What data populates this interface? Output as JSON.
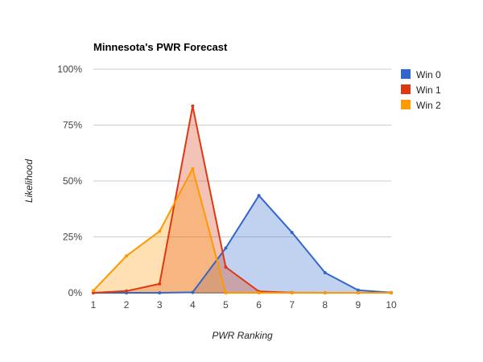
{
  "chart_data": {
    "type": "area",
    "title": "Minnesota's PWR Forecast",
    "xlabel": "PWR Ranking",
    "ylabel": "Likelihood",
    "x": [
      1,
      2,
      3,
      4,
      5,
      6,
      7,
      8,
      9,
      10
    ],
    "x_ticks": [
      "1",
      "2",
      "3",
      "4",
      "5",
      "6",
      "7",
      "8",
      "9",
      "10"
    ],
    "ylim": [
      0,
      100
    ],
    "y_ticks": [
      {
        "value": 0,
        "label": "0%"
      },
      {
        "value": 25,
        "label": "25%"
      },
      {
        "value": 50,
        "label": "50%"
      },
      {
        "value": 75,
        "label": "75%"
      },
      {
        "value": 100,
        "label": "100%"
      }
    ],
    "grid": true,
    "legend_position": "right",
    "series": [
      {
        "name": "Win 0",
        "color": "#3366cc",
        "values": [
          0,
          0,
          0,
          0.2,
          20,
          43.5,
          27,
          9,
          1.2,
          0.1
        ]
      },
      {
        "name": "Win 1",
        "color": "#dc3912",
        "values": [
          0,
          0.8,
          4,
          83.5,
          11.5,
          0.6,
          0.1,
          0,
          0,
          0
        ]
      },
      {
        "name": "Win 2",
        "color": "#ff9900",
        "values": [
          1,
          16.5,
          27.5,
          55.5,
          0,
          0,
          0,
          0,
          0,
          0
        ]
      }
    ]
  }
}
